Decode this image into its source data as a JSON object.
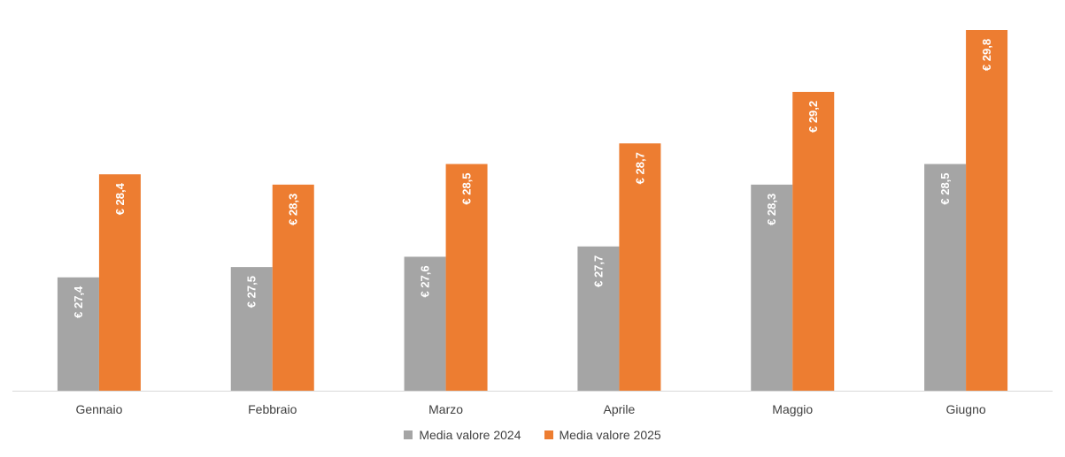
{
  "chart_data": {
    "type": "bar",
    "categories": [
      "Gennaio",
      "Febbraio",
      "Marzo",
      "Aprile",
      "Maggio",
      "Giugno"
    ],
    "series": [
      {
        "name": "Media valore 2024",
        "color": "#A5A5A5",
        "values": [
          27.4,
          27.5,
          27.6,
          27.7,
          28.3,
          28.5
        ],
        "labels": [
          "€ 27,4",
          "€ 27,5",
          "€ 27,6",
          "€ 27,7",
          "€ 28,3",
          "€ 28,5"
        ]
      },
      {
        "name": "Media valore 2025",
        "color": "#ED7D31",
        "values": [
          28.4,
          28.3,
          28.5,
          28.7,
          29.2,
          29.8
        ],
        "labels": [
          "€ 28,4",
          "€ 28,3",
          "€ 28,5",
          "€ 28,7",
          "€ 29,2",
          "€ 29,8"
        ]
      }
    ],
    "title": "",
    "xlabel": "",
    "ylabel": "",
    "ylim": [
      26.3,
      29.8
    ],
    "grid": false,
    "legend_position": "bottom"
  }
}
